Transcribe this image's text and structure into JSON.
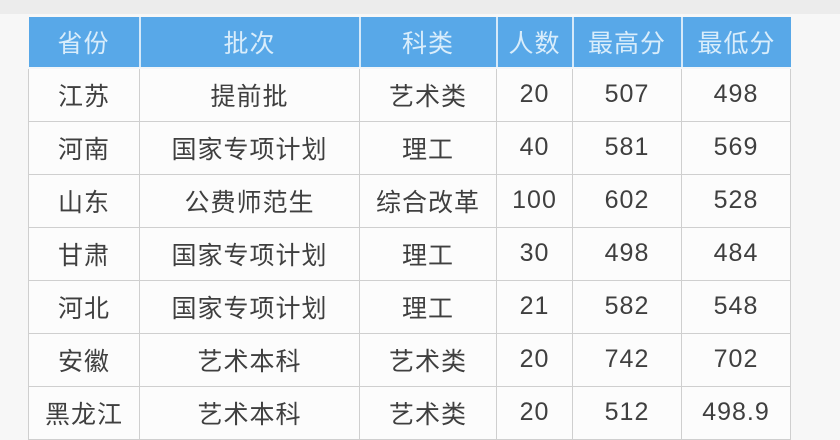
{
  "table": {
    "columns": [
      {
        "key": "province",
        "label": "省份"
      },
      {
        "key": "batch",
        "label": "批次"
      },
      {
        "key": "subject",
        "label": "科类"
      },
      {
        "key": "count",
        "label": "人数"
      },
      {
        "key": "max",
        "label": "最高分"
      },
      {
        "key": "min",
        "label": "最低分"
      }
    ],
    "rows": [
      [
        "江苏",
        "提前批",
        "艺术类",
        "20",
        "507",
        "498"
      ],
      [
        "河南",
        "国家专项计划",
        "理工",
        "40",
        "581",
        "569"
      ],
      [
        "山东",
        "公费师范生",
        "综合改革",
        "100",
        "602",
        "528"
      ],
      [
        "甘肃",
        "国家专项计划",
        "理工",
        "30",
        "498",
        "484"
      ],
      [
        "河北",
        "国家专项计划",
        "理工",
        "21",
        "582",
        "548"
      ],
      [
        "安徽",
        "艺术本科",
        "艺术类",
        "20",
        "742",
        "702"
      ],
      [
        "黑龙江",
        "艺术本科",
        "艺术类",
        "20",
        "512",
        "498.9"
      ]
    ]
  },
  "colors": {
    "header_bg": "#58a8e8",
    "header_text": "#d9edfb",
    "border": "#cfcfcf",
    "body_text": "#3f3f3f",
    "page_bg": "#f7f7f7"
  }
}
